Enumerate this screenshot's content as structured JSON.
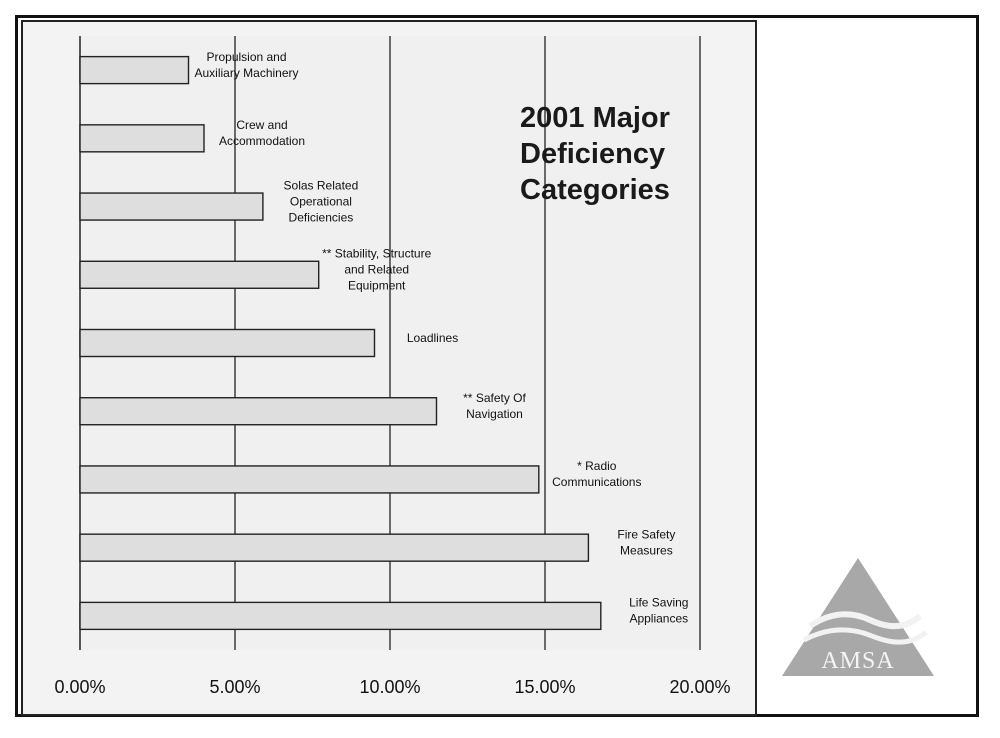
{
  "chart_data": {
    "type": "bar",
    "orientation": "horizontal",
    "title": "2001 Major Deficiency Categories",
    "xlabel": "",
    "ylabel": "",
    "xlim": [
      0,
      20
    ],
    "ticks": [
      "0.00%",
      "5.00%",
      "10.00%",
      "15.00%",
      "20.00%"
    ],
    "tick_values": [
      0,
      5,
      10,
      15,
      20
    ],
    "grid": "vertical",
    "categories": [
      [
        "Propulsion and",
        "Auxiliary Machinery"
      ],
      [
        "Crew and",
        "Accommodation"
      ],
      [
        "Solas Related",
        "Operational",
        "Deficiencies"
      ],
      [
        "** Stability, Structure",
        "and Related",
        "Equipment"
      ],
      [
        "Loadlines"
      ],
      [
        "** Safety Of",
        "Navigation"
      ],
      [
        "* Radio",
        "Communications"
      ],
      [
        "Fire Safety",
        "Measures"
      ],
      [
        "Life Saving",
        "Appliances"
      ]
    ],
    "values": [
      3.5,
      4.0,
      5.9,
      7.7,
      9.5,
      11.5,
      14.8,
      16.4,
      16.8
    ],
    "bar_color": "#dedede",
    "background_color": "#f0f0f0"
  },
  "logo": {
    "text": "AMSA",
    "icon": "amsa-triangle-logo",
    "color": "#9a9a9a"
  }
}
